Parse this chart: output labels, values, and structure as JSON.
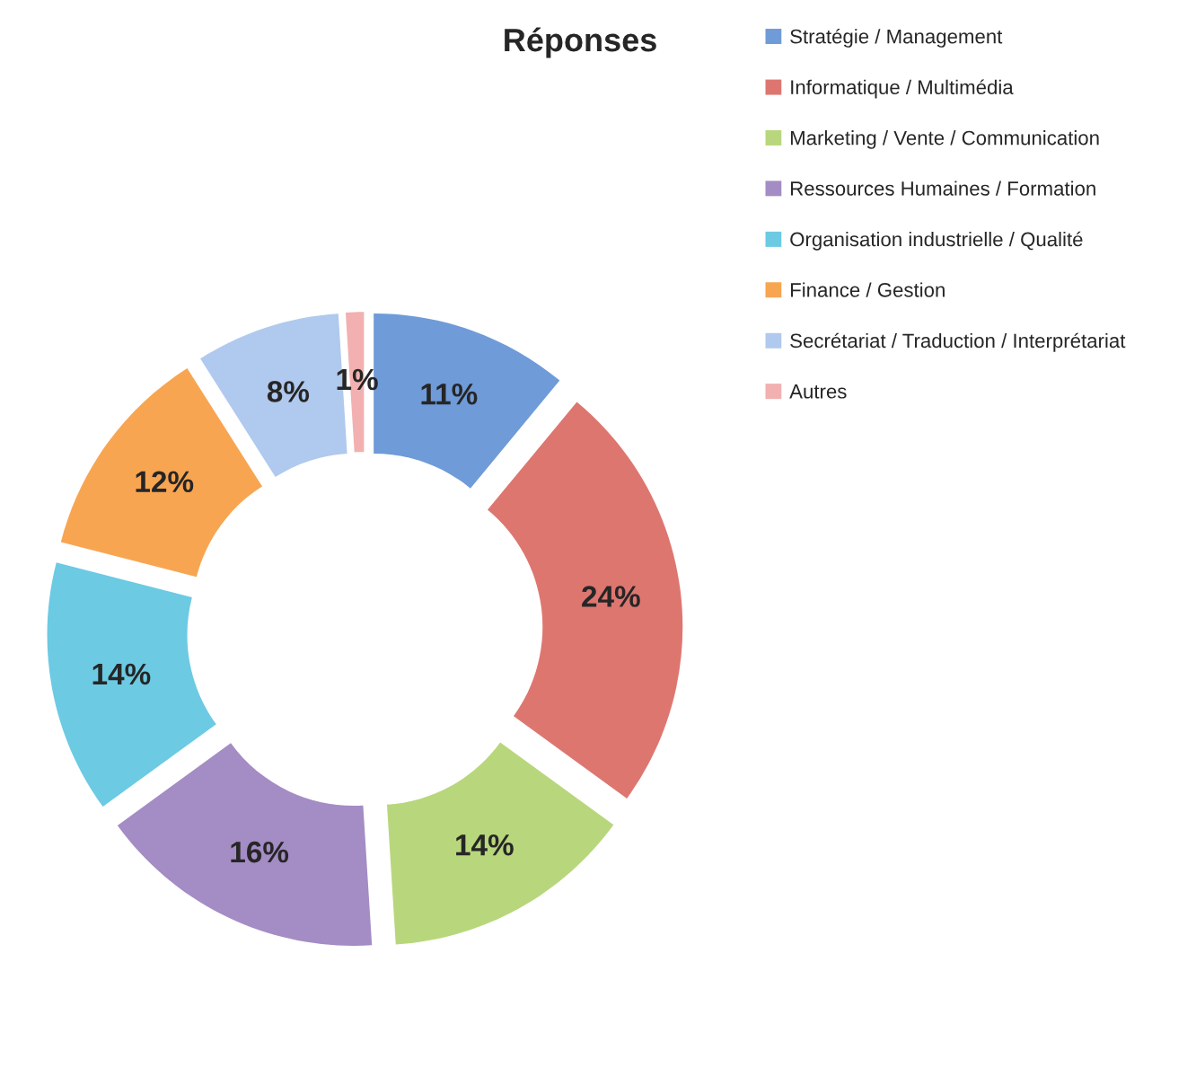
{
  "chart_data": {
    "type": "donut",
    "title": "Réponses",
    "categories": [
      "Stratégie / Management",
      "Informatique / Multimédia",
      "Marketing / Vente / Communication",
      "Ressources Humaines / Formation",
      "Organisation industrielle / Qualité",
      "Finance / Gestion",
      "Secrétariat / Traduction / Interprétariat",
      "Autres"
    ],
    "values": [
      11,
      24,
      14,
      16,
      14,
      12,
      8,
      1
    ],
    "value_labels": [
      "11%",
      "24%",
      "14%",
      "16%",
      "14%",
      "12%",
      "8%",
      "1%"
    ],
    "colors": [
      "#6f9bd8",
      "#de7670",
      "#b8d77c",
      "#a48cc4",
      "#6ccae3",
      "#f8a552",
      "#b0c9ee",
      "#f2b0b0"
    ],
    "legend": "right"
  }
}
